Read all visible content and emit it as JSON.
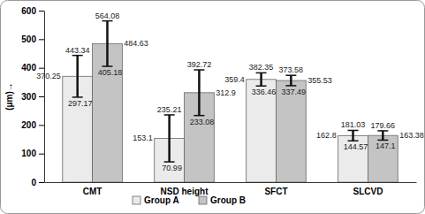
{
  "chart_data": {
    "type": "bar",
    "categories": [
      "CMT",
      "NSD height",
      "SFCT",
      "SLCVD"
    ],
    "series": [
      {
        "name": "Group A",
        "color": "#ebebeb",
        "values": [
          370.25,
          153.1,
          359.4,
          162.8
        ],
        "upper": [
          443.34,
          235.21,
          382.35,
          181.03
        ],
        "lower": [
          297.17,
          70.99,
          336.46,
          144.57
        ]
      },
      {
        "name": "Group B",
        "color": "#c4c4c4",
        "values": [
          484.63,
          312.9,
          355.53,
          163.38
        ],
        "upper": [
          564.08,
          392.72,
          373.58,
          179.66
        ],
        "lower": [
          405.18,
          233.08,
          337.49,
          147.1
        ]
      }
    ],
    "ylim": [
      0,
      600
    ],
    "yticks": [
      0,
      100,
      200,
      300,
      400,
      500,
      600
    ],
    "y_label": "(μm)→",
    "data_labels": true,
    "legend": "bottom",
    "grid": false
  }
}
